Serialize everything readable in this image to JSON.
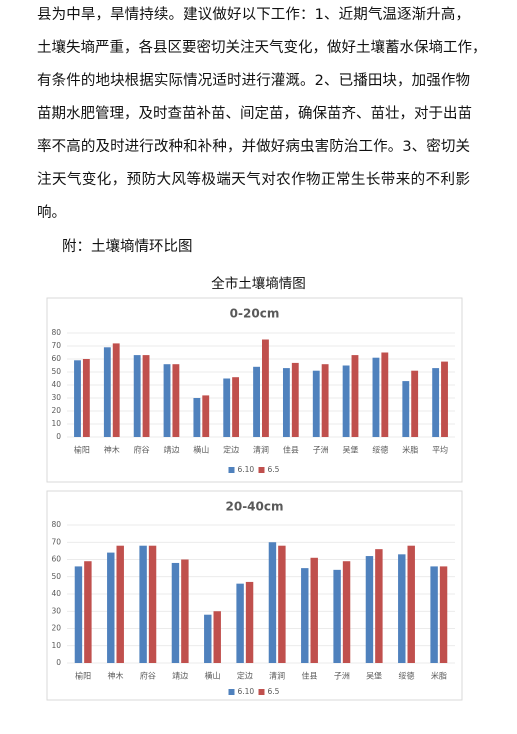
{
  "paragraph_lines": [
    "县为中旱，旱情持续。建议做好以下工作：1、近期气温逐渐升高，",
    "土壤失墒严重，各县区要密切关注天气变化，做好土壤蓄水保墒工作，",
    "有条件的地块根据实际情况适时进行灌溉。2、已播田块，加强作物",
    "苗期水肥管理，及时查苗补苗、间定苗，确保苗齐、苗壮，对于出苗",
    "率不高的及时进行改种和补种，并做好病虫害防治工作。3、密切关",
    "注天气变化，预防大风等极端天气对农作物正常生长带来的不利影",
    "响。"
  ],
  "appendix_label": "附：土壤墒情环比图",
  "figure_title": "全市土壤墒情图",
  "chart_data": [
    {
      "type": "bar",
      "title": "0-20cm",
      "categories": [
        "榆阳",
        "神木",
        "府谷",
        "靖边",
        "横山",
        "定边",
        "清涧",
        "佳县",
        "子洲",
        "吴堡",
        "绥德",
        "米脂",
        "平均"
      ],
      "series": [
        {
          "name": "6.10",
          "color": "#4f81bd",
          "values": [
            59,
            69,
            63,
            56,
            30,
            45,
            54,
            53,
            51,
            55,
            61,
            43,
            53
          ]
        },
        {
          "name": "6.5",
          "color": "#c0504d",
          "values": [
            60,
            72,
            63,
            56,
            32,
            46,
            75,
            57,
            56,
            63,
            65,
            51,
            58
          ]
        }
      ],
      "ylim": [
        0,
        80
      ],
      "yticks": [
        0,
        10,
        20,
        30,
        40,
        50,
        60,
        70,
        80
      ],
      "grid": true,
      "legend": "bottom"
    },
    {
      "type": "bar",
      "title": "20-40cm",
      "categories": [
        "榆阳",
        "神木",
        "府谷",
        "靖边",
        "横山",
        "定边",
        "清涧",
        "佳县",
        "子洲",
        "吴堡",
        "绥德",
        "米脂"
      ],
      "series": [
        {
          "name": "6.10",
          "color": "#4f81bd",
          "values": [
            56,
            64,
            68,
            58,
            28,
            46,
            70,
            55,
            54,
            62,
            63,
            56
          ]
        },
        {
          "name": "6.5",
          "color": "#c0504d",
          "values": [
            59,
            68,
            68,
            60,
            30,
            47,
            68,
            61,
            59,
            66,
            68,
            56
          ]
        }
      ],
      "ylim": [
        0,
        80
      ],
      "yticks": [
        0,
        10,
        20,
        30,
        40,
        50,
        60,
        70,
        80
      ],
      "grid": true,
      "legend": "bottom"
    }
  ]
}
